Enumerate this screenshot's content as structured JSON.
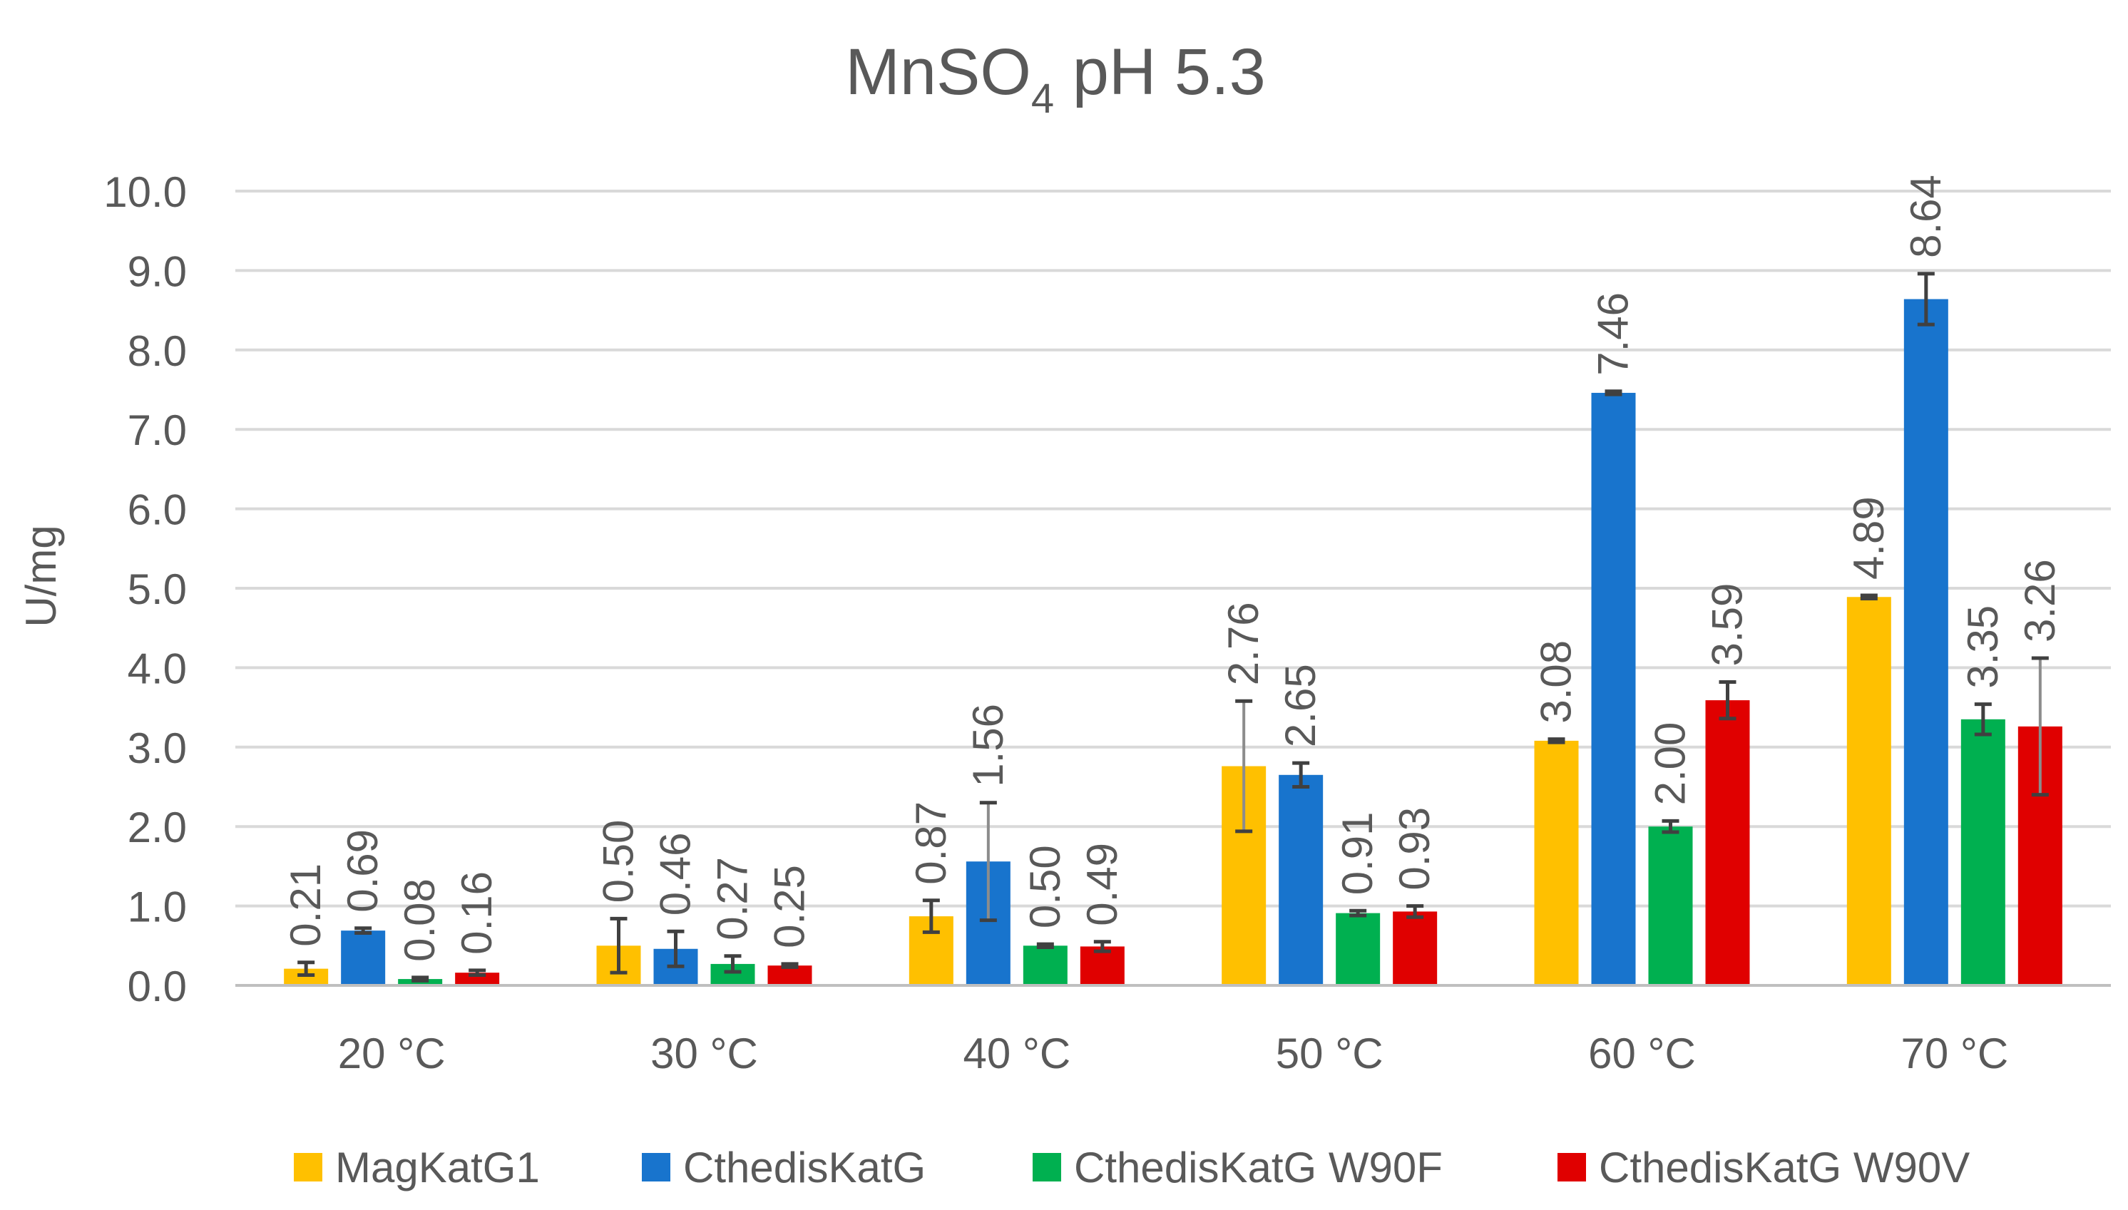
{
  "chart_data": {
    "type": "bar",
    "title_main": "MnSO",
    "title_sub": "4",
    "title_rest": " pH 5.3",
    "ylabel": "U/mg",
    "xlabel": "",
    "ylim": [
      0,
      10
    ],
    "yticks": [
      "0.0",
      "1.0",
      "2.0",
      "3.0",
      "4.0",
      "5.0",
      "6.0",
      "7.0",
      "8.0",
      "9.0",
      "10.0"
    ],
    "categories": [
      "20 °C",
      "30 °C",
      "40 °C",
      "50 °C",
      "60 °C",
      "70 °C"
    ],
    "legend_position": "bottom",
    "series": [
      {
        "name": "MagKatG1",
        "color": "#ffc000",
        "values": [
          0.21,
          0.5,
          0.87,
          2.76,
          3.08,
          4.89
        ],
        "labels": [
          "0.21",
          "0.50",
          "0.87",
          "2.76",
          "3.08",
          "4.89"
        ],
        "errors": [
          0.08,
          0.34,
          0.2,
          0.82,
          0.02,
          0.02
        ]
      },
      {
        "name": "CthedisKatG",
        "color": "#1874cd",
        "values": [
          0.69,
          0.46,
          1.56,
          2.65,
          7.46,
          8.64
        ],
        "labels": [
          "0.69",
          "0.46",
          "1.56",
          "2.65",
          "7.46",
          "8.64"
        ],
        "errors": [
          0.03,
          0.22,
          0.74,
          0.15,
          0.02,
          0.32
        ]
      },
      {
        "name": "CthedisKatG W90F",
        "color": "#00b050",
        "values": [
          0.08,
          0.27,
          0.5,
          0.91,
          2.0,
          3.35
        ],
        "labels": [
          "0.08",
          "0.27",
          "0.50",
          "0.91",
          "2.00",
          "3.35"
        ],
        "errors": [
          0.02,
          0.1,
          0.02,
          0.03,
          0.07,
          0.19
        ]
      },
      {
        "name": "CthedisKatG W90V",
        "color": "#e00000",
        "values": [
          0.16,
          0.25,
          0.49,
          0.93,
          3.59,
          3.26
        ],
        "labels": [
          "0.16",
          "0.25",
          "0.49",
          "0.93",
          "3.59",
          "3.26"
        ],
        "errors": [
          0.03,
          0.02,
          0.06,
          0.07,
          0.23,
          0.86
        ]
      }
    ]
  }
}
